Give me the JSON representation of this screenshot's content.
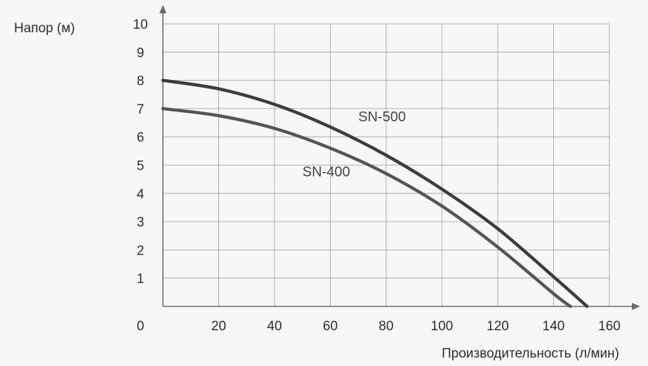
{
  "chart_data": {
    "type": "line",
    "title": "",
    "xlabel": "Производительность (л/мин)",
    "ylabel": "Напор (м)",
    "xlim": [
      0,
      160
    ],
    "ylim": [
      0,
      10
    ],
    "x_ticks": [
      0,
      20,
      40,
      60,
      80,
      100,
      120,
      140,
      160
    ],
    "y_ticks": [
      1,
      2,
      3,
      4,
      5,
      6,
      7,
      8,
      9,
      10
    ],
    "grid": true,
    "series": [
      {
        "name": "SN-500",
        "color": "#3c3c3c",
        "x": [
          0,
          20,
          40,
          60,
          80,
          100,
          120,
          140,
          152
        ],
        "y": [
          8.0,
          7.7,
          7.15,
          6.35,
          5.35,
          4.15,
          2.75,
          1.05,
          0
        ]
      },
      {
        "name": "SN-400",
        "color": "#555555",
        "x": [
          0,
          20,
          40,
          60,
          80,
          100,
          120,
          140,
          146
        ],
        "y": [
          7.0,
          6.75,
          6.3,
          5.6,
          4.7,
          3.55,
          2.1,
          0.45,
          0
        ]
      }
    ],
    "annotations": [
      {
        "text": "SN-500",
        "x": 70,
        "y": 6.55
      },
      {
        "text": "SN-400",
        "x": 50,
        "y": 4.6
      }
    ]
  }
}
